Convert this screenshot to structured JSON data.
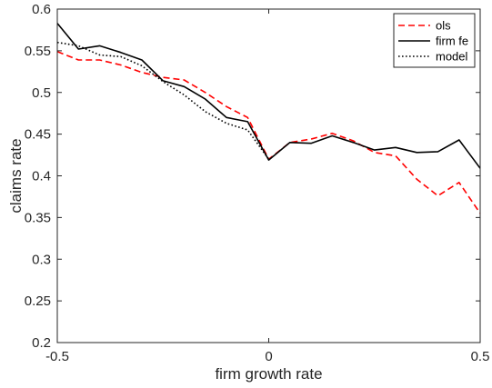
{
  "chart_data": {
    "type": "line",
    "title": "",
    "xlabel": "firm growth rate",
    "ylabel": "claims rate",
    "xlim": [
      -0.5,
      0.5
    ],
    "ylim": [
      0.2,
      0.6
    ],
    "xticks": [
      -0.5,
      0,
      0.5
    ],
    "xtick_labels": [
      "-0.5",
      "0",
      "0.5"
    ],
    "yticks": [
      0.2,
      0.25,
      0.3,
      0.35,
      0.4,
      0.45,
      0.5,
      0.55,
      0.6
    ],
    "ytick_labels": [
      "0.2",
      "0.25",
      "0.3",
      "0.35",
      "0.4",
      "0.45",
      "0.5",
      "0.55",
      "0.6"
    ],
    "grid": false,
    "legend_position": "top-right",
    "series": [
      {
        "name": "ols",
        "color": "#ff0000",
        "dash": "dashed",
        "x": [
          -0.5,
          -0.45,
          -0.4,
          -0.35,
          -0.3,
          -0.25,
          -0.2,
          -0.15,
          -0.1,
          -0.05,
          0,
          0.05,
          0.1,
          0.15,
          0.2,
          0.25,
          0.3,
          0.35,
          0.4,
          0.45,
          0.5
        ],
        "y": [
          0.549,
          0.539,
          0.539,
          0.533,
          0.524,
          0.518,
          0.515,
          0.5,
          0.483,
          0.47,
          0.42,
          0.44,
          0.444,
          0.451,
          0.442,
          0.428,
          0.424,
          0.396,
          0.376,
          0.392,
          0.355
        ]
      },
      {
        "name": "firm fe",
        "color": "#000000",
        "dash": "solid",
        "x": [
          -0.5,
          -0.45,
          -0.4,
          -0.35,
          -0.3,
          -0.25,
          -0.2,
          -0.15,
          -0.1,
          -0.05,
          0,
          0.05,
          0.1,
          0.15,
          0.2,
          0.25,
          0.3,
          0.35,
          0.4,
          0.45,
          0.5
        ],
        "y": [
          0.583,
          0.552,
          0.556,
          0.548,
          0.539,
          0.514,
          0.507,
          0.492,
          0.47,
          0.465,
          0.419,
          0.44,
          0.439,
          0.448,
          0.44,
          0.431,
          0.434,
          0.428,
          0.429,
          0.443,
          0.409
        ]
      },
      {
        "name": "model",
        "color": "#000000",
        "dash": "dotted",
        "x": [
          -0.5,
          -0.45,
          -0.4,
          -0.35,
          -0.3,
          -0.25,
          -0.2,
          -0.15,
          -0.1,
          -0.05,
          0
        ],
        "y": [
          0.56,
          0.556,
          0.545,
          0.543,
          0.532,
          0.513,
          0.497,
          0.477,
          0.463,
          0.455,
          0.42
        ]
      }
    ]
  }
}
